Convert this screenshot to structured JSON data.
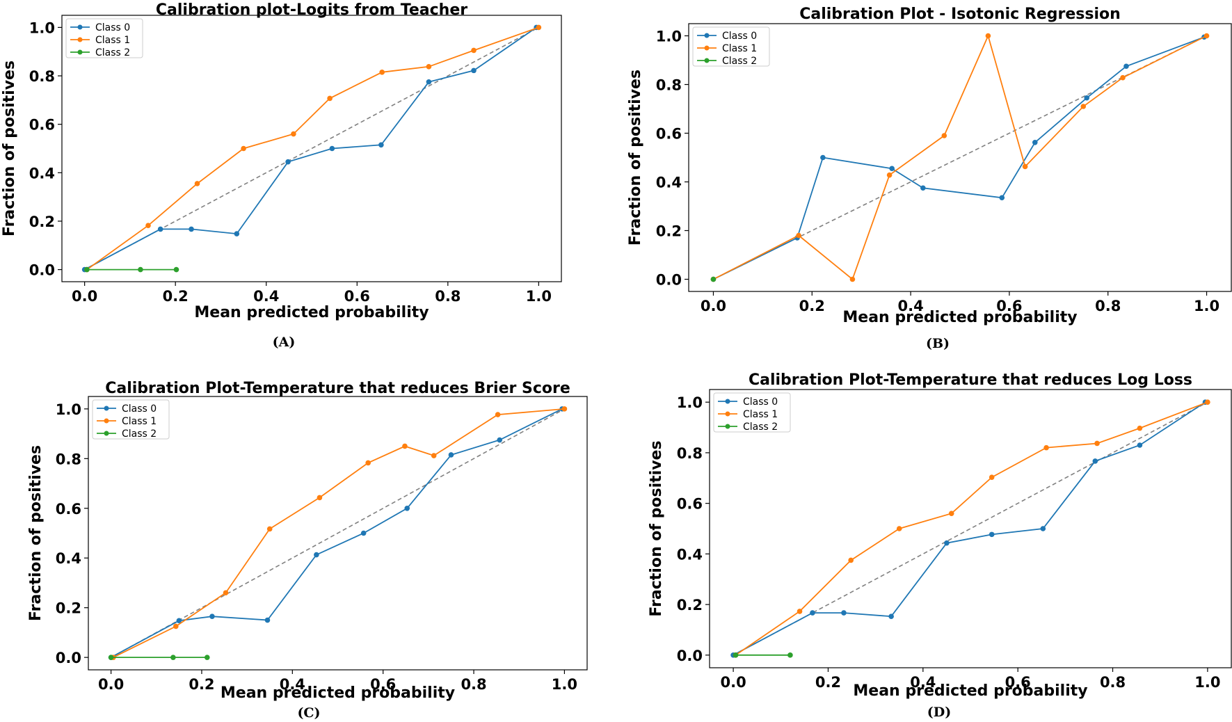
{
  "colors": {
    "class0": "#1f77b4",
    "class1": "#ff7f0e",
    "class2": "#2ca02c",
    "reference": "#808080",
    "frame": "#000000"
  },
  "chart_data": [
    {
      "panel": "A",
      "caption": "(A)",
      "type": "line",
      "title": "Calibration plot-Logits from Teacher",
      "xlabel": "Mean predicted probability",
      "ylabel": "Fraction of positives",
      "xlim": [
        -0.05,
        1.05
      ],
      "ylim": [
        -0.05,
        1.05
      ],
      "xticks": [
        0.0,
        0.2,
        0.4,
        0.6,
        0.8,
        1.0
      ],
      "yticks": [
        0.0,
        0.2,
        0.4,
        0.6,
        0.8,
        1.0
      ],
      "tick_labels": [
        "0.0",
        "0.2",
        "0.4",
        "0.6",
        "0.8",
        "1.0"
      ],
      "legend_position": "top-left",
      "reference_line": [
        [
          0,
          0
        ],
        [
          1,
          1
        ]
      ],
      "series": [
        {
          "name": "Class 0",
          "x": [
            0.0,
            0.167,
            0.235,
            0.335,
            0.448,
            0.545,
            0.653,
            0.758,
            0.857,
            0.995
          ],
          "y": [
            0.0,
            0.167,
            0.167,
            0.148,
            0.445,
            0.5,
            0.515,
            0.775,
            0.822,
            1.0
          ]
        },
        {
          "name": "Class 1",
          "x": [
            0.005,
            0.14,
            0.248,
            0.35,
            0.46,
            0.54,
            0.655,
            0.758,
            0.857,
            1.0
          ],
          "y": [
            0.0,
            0.182,
            0.355,
            0.5,
            0.56,
            0.707,
            0.815,
            0.838,
            0.905,
            1.0
          ]
        },
        {
          "name": "Class 2",
          "x": [
            0.005,
            0.123,
            0.202
          ],
          "y": [
            0.0,
            0.0,
            0.0
          ]
        }
      ]
    },
    {
      "panel": "B",
      "caption": "(B)",
      "type": "line",
      "title": "Calibration Plot - Isotonic Regression",
      "xlabel": "Mean predicted probability",
      "ylabel": "Fraction of positives",
      "xlim": [
        -0.05,
        1.05
      ],
      "ylim": [
        -0.05,
        1.05
      ],
      "xticks": [
        0.0,
        0.2,
        0.4,
        0.6,
        0.8,
        1.0
      ],
      "yticks": [
        0.0,
        0.2,
        0.4,
        0.6,
        0.8,
        1.0
      ],
      "tick_labels": [
        "0.0",
        "0.2",
        "0.4",
        "0.6",
        "0.8",
        "1.0"
      ],
      "legend_position": "top-left",
      "reference_line": [
        [
          0,
          0
        ],
        [
          1,
          1
        ]
      ],
      "series": [
        {
          "name": "Class 0",
          "x": [
            0.0,
            0.17,
            0.222,
            0.362,
            0.425,
            0.585,
            0.652,
            0.757,
            0.837,
            0.995
          ],
          "y": [
            0.0,
            0.17,
            0.5,
            0.455,
            0.375,
            0.335,
            0.562,
            0.745,
            0.875,
            0.995
          ]
        },
        {
          "name": "Class 1",
          "x": [
            0.0,
            0.173,
            0.282,
            0.357,
            0.468,
            0.557,
            0.632,
            0.75,
            0.83,
            1.0
          ],
          "y": [
            0.0,
            0.18,
            0.0,
            0.428,
            0.59,
            1.0,
            0.463,
            0.71,
            0.828,
            1.0
          ]
        },
        {
          "name": "Class 2",
          "x": [
            0.0
          ],
          "y": [
            0.0
          ]
        }
      ]
    },
    {
      "panel": "C",
      "caption": "(C)",
      "type": "line",
      "title": "Calibration Plot-Temperature that reduces Brier Score",
      "xlabel": "Mean predicted probability",
      "ylabel": "Fraction of positives",
      "xlim": [
        -0.05,
        1.05
      ],
      "ylim": [
        -0.05,
        1.05
      ],
      "xticks": [
        0.0,
        0.2,
        0.4,
        0.6,
        0.8,
        1.0
      ],
      "yticks": [
        0.0,
        0.2,
        0.4,
        0.6,
        0.8,
        1.0
      ],
      "tick_labels": [
        "0.0",
        "0.2",
        "0.4",
        "0.6",
        "0.8",
        "1.0"
      ],
      "legend_position": "top-left",
      "reference_line": [
        [
          0,
          0
        ],
        [
          1,
          1
        ]
      ],
      "series": [
        {
          "name": "Class 0",
          "x": [
            0.0,
            0.15,
            0.223,
            0.345,
            0.453,
            0.557,
            0.653,
            0.75,
            0.857,
            0.995
          ],
          "y": [
            0.0,
            0.148,
            0.165,
            0.15,
            0.413,
            0.5,
            0.6,
            0.815,
            0.875,
            1.0
          ]
        },
        {
          "name": "Class 1",
          "x": [
            0.005,
            0.143,
            0.253,
            0.35,
            0.46,
            0.567,
            0.648,
            0.712,
            0.853,
            1.0
          ],
          "y": [
            0.0,
            0.125,
            0.26,
            0.517,
            0.643,
            0.783,
            0.85,
            0.812,
            0.977,
            1.0
          ]
        },
        {
          "name": "Class 2",
          "x": [
            0.0,
            0.137,
            0.212
          ],
          "y": [
            0.0,
            0.0,
            0.0
          ]
        }
      ]
    },
    {
      "panel": "D",
      "caption": "(D)",
      "type": "line",
      "title": "Calibration Plot-Temperature that reduces Log Loss",
      "xlabel": "Mean predicted probability",
      "ylabel": "Fraction of positives",
      "xlim": [
        -0.05,
        1.05
      ],
      "ylim": [
        -0.05,
        1.05
      ],
      "xticks": [
        0.0,
        0.2,
        0.4,
        0.6,
        0.8,
        1.0
      ],
      "yticks": [
        0.0,
        0.2,
        0.4,
        0.6,
        0.8,
        1.0
      ],
      "tick_labels": [
        "0.0",
        "0.2",
        "0.4",
        "0.6",
        "0.8",
        "1.0"
      ],
      "legend_position": "top-left",
      "reference_line": [
        [
          0,
          0
        ],
        [
          1,
          1
        ]
      ],
      "series": [
        {
          "name": "Class 0",
          "x": [
            0.0,
            0.167,
            0.233,
            0.333,
            0.45,
            0.545,
            0.653,
            0.763,
            0.857,
            0.995
          ],
          "y": [
            0.0,
            0.167,
            0.167,
            0.153,
            0.443,
            0.477,
            0.5,
            0.767,
            0.83,
            1.0
          ]
        },
        {
          "name": "Class 1",
          "x": [
            0.005,
            0.14,
            0.248,
            0.35,
            0.46,
            0.545,
            0.66,
            0.767,
            0.857,
            1.0
          ],
          "y": [
            0.0,
            0.173,
            0.375,
            0.5,
            0.56,
            0.703,
            0.82,
            0.837,
            0.897,
            1.0
          ]
        },
        {
          "name": "Class 2",
          "x": [
            0.005,
            0.12
          ],
          "y": [
            0.0,
            0.0
          ]
        }
      ]
    }
  ]
}
